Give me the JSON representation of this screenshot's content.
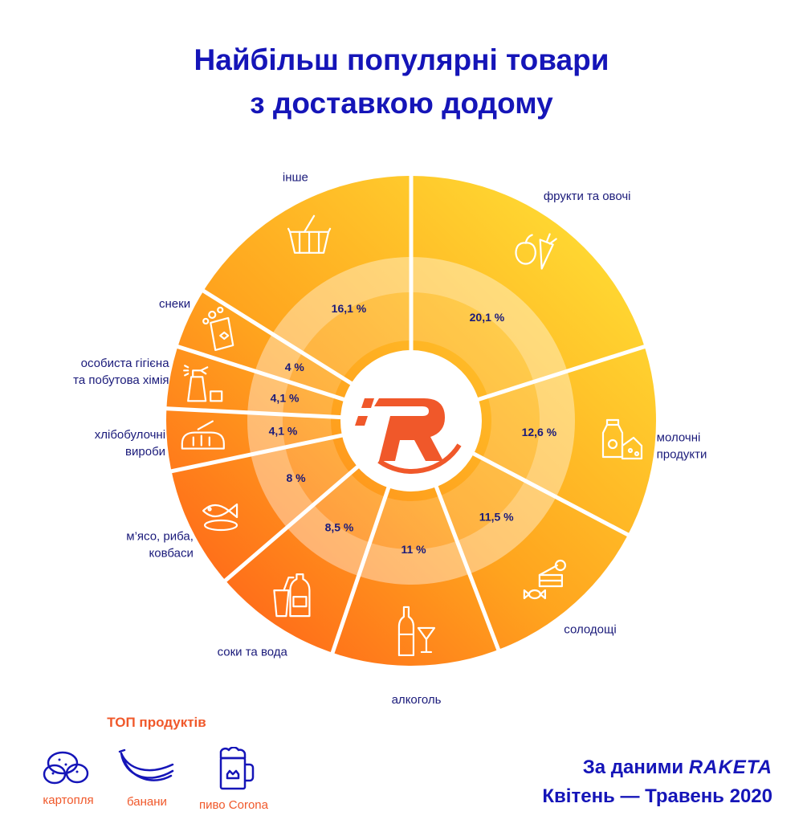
{
  "title_line1": "Найбільш популярні товари",
  "title_line2": "з доставкою додому",
  "chart_data": {
    "type": "pie",
    "style": "donut",
    "unit": "%",
    "categories": [
      {
        "label": [
          "фрукти та овочі"
        ],
        "value": 20.1,
        "display": "20,1 %",
        "icon": "apple-carrot-icon"
      },
      {
        "label": [
          "молочні",
          "продукти"
        ],
        "value": 12.6,
        "display": "12,6 %",
        "icon": "milk-cheese-icon"
      },
      {
        "label": [
          "солодощі"
        ],
        "value": 11.5,
        "display": "11,5 %",
        "icon": "cake-candy-icon"
      },
      {
        "label": [
          "алкоголь"
        ],
        "value": 11,
        "display": "11 %",
        "icon": "wine-bottle-glass-icon"
      },
      {
        "label": [
          "соки та вода"
        ],
        "value": 8.5,
        "display": "8,5 %",
        "icon": "juice-bottle-icon"
      },
      {
        "label": [
          "м’ясо, риба,",
          "ковбаси"
        ],
        "value": 8,
        "display": "8 %",
        "icon": "fish-icon"
      },
      {
        "label": [
          "хлібобулочні",
          "вироби"
        ],
        "value": 4.1,
        "display": "4,1 %",
        "icon": "bread-icon"
      },
      {
        "label": [
          "особиста гігієна",
          "та побутова хімія"
        ],
        "value": 4.1,
        "display": "4,1 %",
        "icon": "spray-bottle-icon"
      },
      {
        "label": [
          "снеки"
        ],
        "value": 4,
        "display": "4 %",
        "icon": "snack-bag-icon"
      },
      {
        "label": [
          "інше"
        ],
        "value": 16.1,
        "display": "16,1 %",
        "icon": "basket-icon"
      }
    ],
    "colors": {
      "start": "#ffe135",
      "end": "#ff5a18",
      "label": "#1a1a7a"
    }
  },
  "center_logo": "raketa-r-logo-icon",
  "top_products": {
    "title": "ТОП продуктів",
    "items": [
      {
        "label": "картопля",
        "icon": "potato-icon"
      },
      {
        "label": "банани",
        "icon": "banana-icon"
      },
      {
        "label": "пиво Corona",
        "icon": "beer-mug-icon"
      }
    ]
  },
  "source": {
    "prefix": "За даними",
    "brand": "RAKETA",
    "period": "Квітень — Травень 2020"
  }
}
